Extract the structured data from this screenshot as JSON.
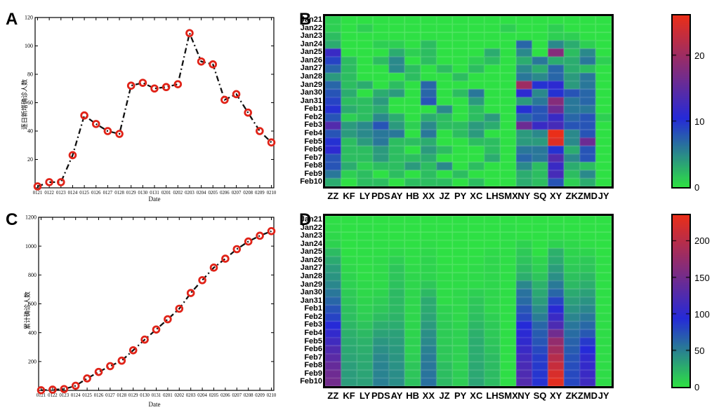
{
  "page": {
    "background": "#ffffff"
  },
  "panels": {
    "A": {
      "label": "A",
      "ylabel": "逐日新增确诊人数",
      "xlabel": "Date"
    },
    "B": {
      "label": "B"
    },
    "C": {
      "label": "C",
      "ylabel": "累计确诊人数",
      "xlabel": "Date"
    },
    "D": {
      "label": "D"
    }
  },
  "colors": {
    "marker_red": "#e02318",
    "line_black": "#111111",
    "cmap_green": "#2ee044",
    "cmap_blue": "#252ad8",
    "cmap_red": "#ea2e19",
    "cmap_blue_position": 0.4
  },
  "chart_data": [
    {
      "id": "A",
      "type": "line",
      "panel": "A",
      "title": "",
      "xlabel": "Date",
      "ylabel": "逐日新增确诊人数",
      "x": [
        "0121",
        "0122",
        "0123",
        "0124",
        "0125",
        "0126",
        "0127",
        "0128",
        "0129",
        "0130",
        "0131",
        "0201",
        "0202",
        "0203",
        "0204",
        "0205",
        "0206",
        "0207",
        "0208",
        "0209",
        "0210"
      ],
      "values": [
        1,
        4,
        4,
        23,
        51,
        45,
        40,
        38,
        72,
        74,
        70,
        71,
        73,
        109,
        89,
        87,
        62,
        66,
        53,
        40,
        32
      ],
      "ylim": [
        0,
        120
      ],
      "yticks": [
        20,
        40,
        60,
        80,
        100,
        120
      ],
      "line_style": "black dash-dot",
      "marker": "open red circle",
      "grid": false
    },
    {
      "id": "B",
      "type": "heatmap",
      "panel": "B",
      "rows": [
        "Jan21",
        "Jan22",
        "Jan23",
        "Jan24",
        "Jan25",
        "Jan26",
        "Jan27",
        "Jan28",
        "Jan29",
        "Jan30",
        "Jan31",
        "Feb1",
        "Feb2",
        "Feb3",
        "Feb4",
        "Feb5",
        "Feb6",
        "Feb7",
        "Feb8",
        "Feb9",
        "Feb10"
      ],
      "cols": [
        "ZZ",
        "KF",
        "LY",
        "PDS",
        "AY",
        "HB",
        "XX",
        "JZ",
        "PY",
        "XC",
        "LH",
        "SMX",
        "NY",
        "SQ",
        "XY",
        "ZK",
        "ZMD",
        "JY"
      ],
      "values": [
        [
          1,
          0,
          0,
          0,
          0,
          0,
          0,
          0,
          0,
          0,
          0,
          0,
          0,
          0,
          0,
          0,
          0,
          0
        ],
        [
          1,
          0,
          1,
          0,
          0,
          0,
          0,
          0,
          0,
          0,
          0,
          1,
          0,
          0,
          1,
          0,
          0,
          0
        ],
        [
          2,
          0,
          0,
          0,
          0,
          0,
          0,
          0,
          0,
          0,
          0,
          0,
          0,
          0,
          1,
          1,
          0,
          0
        ],
        [
          3,
          0,
          0,
          1,
          1,
          0,
          2,
          0,
          0,
          0,
          0,
          0,
          7,
          0,
          5,
          3,
          1,
          0
        ],
        [
          12,
          0,
          0,
          0,
          3,
          1,
          2,
          0,
          0,
          0,
          3,
          0,
          5,
          0,
          18,
          2,
          5,
          0
        ],
        [
          9,
          2,
          0,
          2,
          5,
          0,
          2,
          0,
          0,
          1,
          2,
          0,
          3,
          6,
          3,
          3,
          6,
          1
        ],
        [
          7,
          2,
          0,
          0,
          5,
          2,
          0,
          2,
          0,
          2,
          0,
          0,
          5,
          3,
          7,
          3,
          2,
          0
        ],
        [
          4,
          2,
          0,
          0,
          0,
          2,
          0,
          0,
          2,
          0,
          0,
          0,
          6,
          5,
          7,
          4,
          6,
          0
        ],
        [
          7,
          2,
          3,
          0,
          2,
          0,
          7,
          0,
          0,
          0,
          0,
          0,
          20,
          10,
          11,
          4,
          6,
          0
        ],
        [
          8,
          3,
          0,
          3,
          4,
          0,
          7,
          0,
          2,
          6,
          0,
          0,
          11,
          5,
          10,
          8,
          7,
          0
        ],
        [
          9,
          2,
          2,
          4,
          0,
          0,
          8,
          0,
          0,
          4,
          0,
          0,
          4,
          6,
          18,
          6,
          7,
          0
        ],
        [
          10,
          3,
          2,
          3,
          0,
          0,
          0,
          5,
          0,
          2,
          0,
          0,
          10,
          8,
          16,
          6,
          6,
          0
        ],
        [
          8,
          1,
          2,
          5,
          3,
          0,
          3,
          2,
          0,
          2,
          4,
          0,
          7,
          8,
          12,
          7,
          8,
          1
        ],
        [
          14,
          4,
          5,
          8,
          4,
          1,
          5,
          2,
          2,
          4,
          3,
          0,
          16,
          12,
          13,
          8,
          8,
          0
        ],
        [
          8,
          4,
          5,
          6,
          6,
          0,
          6,
          0,
          2,
          4,
          0,
          0,
          4,
          5,
          26,
          5,
          8,
          0
        ],
        [
          10,
          2,
          4,
          6,
          2,
          2,
          3,
          0,
          0,
          2,
          2,
          0,
          4,
          4,
          25,
          5,
          16,
          0
        ],
        [
          11,
          2,
          2,
          4,
          2,
          0,
          4,
          2,
          0,
          0,
          2,
          0,
          6,
          6,
          10,
          3,
          8,
          0
        ],
        [
          8,
          2,
          2,
          4,
          2,
          2,
          3,
          0,
          0,
          0,
          3,
          0,
          7,
          6,
          14,
          5,
          8,
          0
        ],
        [
          8,
          3,
          1,
          2,
          2,
          4,
          2,
          5,
          0,
          2,
          0,
          0,
          5,
          2,
          12,
          3,
          2,
          0
        ],
        [
          6,
          1,
          2,
          0,
          2,
          0,
          2,
          0,
          2,
          0,
          0,
          0,
          3,
          2,
          13,
          2,
          5,
          0
        ],
        [
          3,
          0,
          2,
          2,
          0,
          2,
          2,
          2,
          0,
          2,
          0,
          0,
          3,
          2,
          8,
          1,
          3,
          0
        ]
      ],
      "vmin": 0,
      "vmax": 26,
      "colorbar_ticks": [
        0,
        10,
        20
      ],
      "colormap": "green-blue-red",
      "row_totals_equal_panel_A": true
    },
    {
      "id": "C",
      "type": "line",
      "panel": "C",
      "title": "",
      "xlabel": "Date",
      "ylabel": "累计确诊人数",
      "x": [
        "0121",
        "0122",
        "0123",
        "0124",
        "0125",
        "0126",
        "0127",
        "0128",
        "0129",
        "0130",
        "0131",
        "0201",
        "0202",
        "0203",
        "0204",
        "0205",
        "0206",
        "0207",
        "0208",
        "0209",
        "0210"
      ],
      "values": [
        1,
        5,
        9,
        32,
        83,
        128,
        168,
        206,
        278,
        352,
        422,
        493,
        566,
        675,
        764,
        851,
        913,
        979,
        1032,
        1072,
        1104
      ],
      "ylim": [
        0,
        1200
      ],
      "yticks": [
        200,
        400,
        600,
        800,
        1000,
        1200
      ],
      "line_style": "black dash-dot",
      "marker": "open red circle",
      "grid": false
    },
    {
      "id": "D",
      "type": "heatmap",
      "panel": "D",
      "rows": [
        "Jan21",
        "Jan22",
        "Jan23",
        "Jan24",
        "Jan25",
        "Jan26",
        "Jan27",
        "Jan28",
        "Jan29",
        "Jan30",
        "Jan31",
        "Feb1",
        "Feb2",
        "Feb3",
        "Feb4",
        "Feb5",
        "Feb6",
        "Feb7",
        "Feb8",
        "Feb9",
        "Feb10"
      ],
      "cols": [
        "ZZ",
        "KF",
        "LY",
        "PDS",
        "AY",
        "HB",
        "XX",
        "JZ",
        "PY",
        "XC",
        "LH",
        "SMX",
        "NY",
        "SQ",
        "XY",
        "ZK",
        "ZMD",
        "JY"
      ],
      "values_are_cumulative_of": "B",
      "column_totals": {
        "ZZ": 149,
        "KF": 35,
        "LY": 33,
        "PDS": 50,
        "AY": 43,
        "HB": 16,
        "XX": 58,
        "JZ": 20,
        "PY": 10,
        "XC": 31,
        "LH": 19,
        "SMX": 1,
        "NY": 126,
        "SQ": 90,
        "XY": 230,
        "ZK": 79,
        "ZMD": 112,
        "JY": 2
      },
      "vmin": 0,
      "vmax": 235,
      "colorbar_ticks": [
        0,
        50,
        100,
        150,
        200
      ],
      "colormap": "green-blue-red"
    }
  ]
}
